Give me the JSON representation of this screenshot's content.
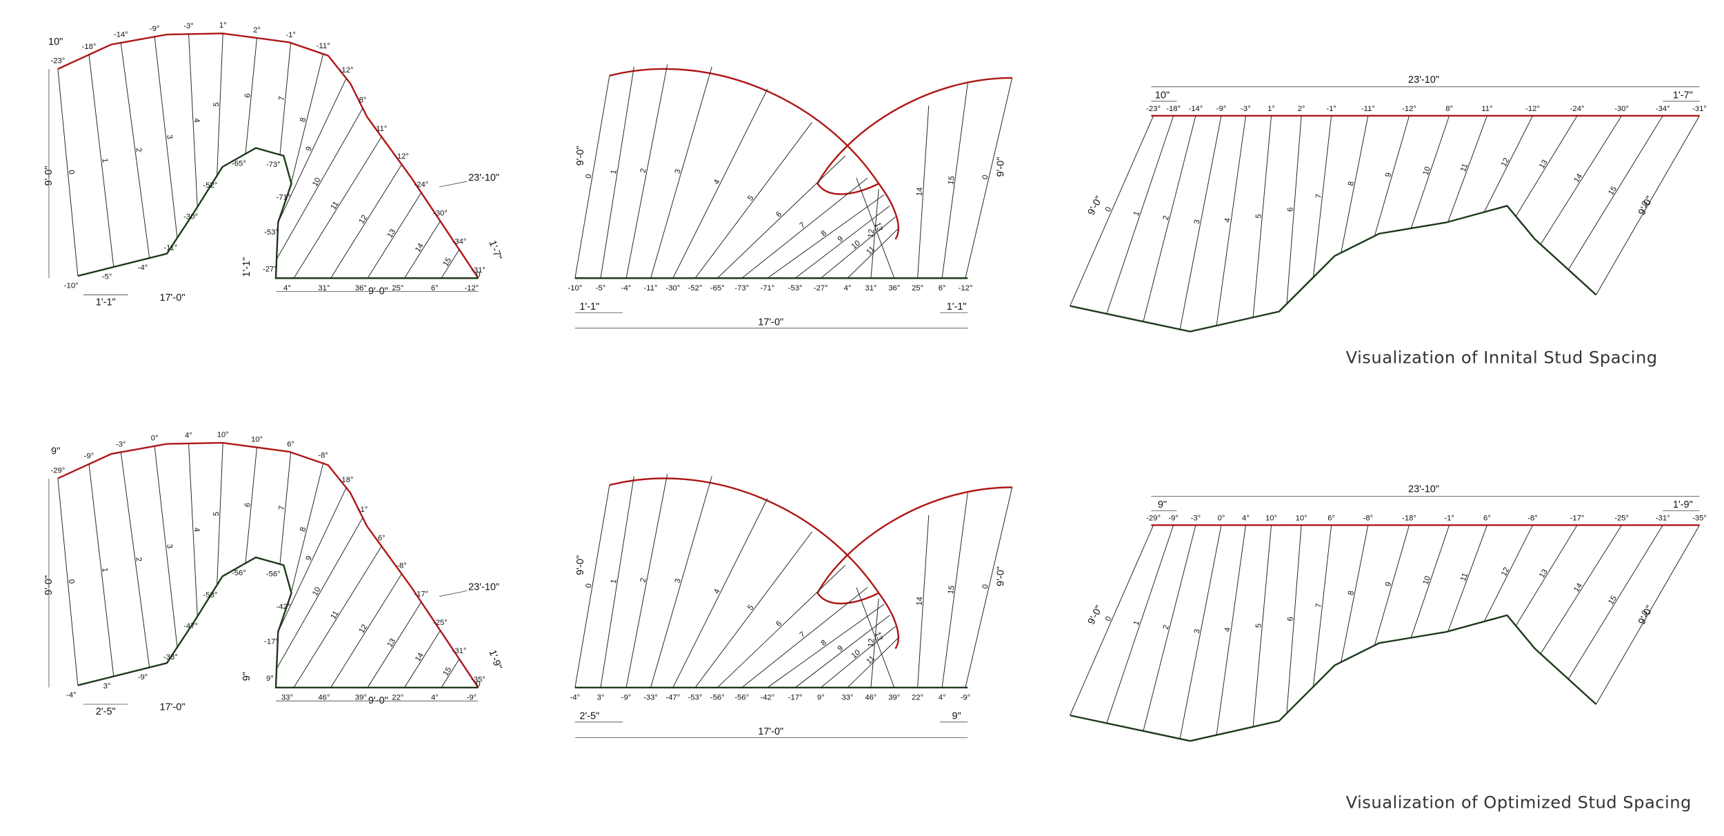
{
  "rows": [
    {
      "caption": "Visualization of Innital Stud Spacing",
      "top_angles": [
        "-23°",
        "-18°",
        "-14°",
        "-9°",
        "-3°",
        "1°",
        "2°",
        "-1°",
        "-11°",
        "-12°",
        "8°",
        "11°",
        "-12°",
        "-24°",
        "-30°",
        "-34°",
        "-31°"
      ],
      "bottom_angles": [
        "-10°",
        "-5°",
        "-4°",
        "-11°",
        "-30°",
        "-52°",
        "-65°",
        "-73°",
        "-71°",
        "-53°",
        "-27°",
        "4°",
        "31°",
        "36°",
        "25°",
        "6°",
        "-12°"
      ],
      "stud_labels": [
        "0",
        "1",
        "2",
        "3",
        "4",
        "5",
        "6",
        "7",
        "8",
        "9",
        "10",
        "11",
        "12",
        "13",
        "14",
        "15",
        "0"
      ],
      "plan_dims": [
        "10\"",
        "9'-0\"",
        "1'-1\"",
        "17'-0\"",
        "23'-10\"",
        "1'-7\"",
        "1'-1\"",
        "9'-0\""
      ],
      "elevation_dims": [
        "9'-0\"",
        "9'-0\"",
        "1'-1\"",
        "1'-1\"",
        "17'-0\""
      ],
      "unrolled_dims": [
        "23'-10\"",
        "10\"",
        "1'-7\"",
        "9'-0\"",
        "9'-0\""
      ]
    },
    {
      "caption": "Visualization of Optimized Stud Spacing",
      "top_angles": [
        "-29°",
        "-9°",
        "-3°",
        "0°",
        "4°",
        "10°",
        "10°",
        "6°",
        "-8°",
        "-18°",
        "-1°",
        "6°",
        "-8°",
        "-17°",
        "-25°",
        "-31°",
        "-35°"
      ],
      "bottom_angles": [
        "-4°",
        "3°",
        "-9°",
        "-33°",
        "-47°",
        "-53°",
        "-56°",
        "-56°",
        "-42°",
        "-17°",
        "9°",
        "33°",
        "46°",
        "39°",
        "22°",
        "4°",
        "-9°"
      ],
      "stud_labels": [
        "0",
        "1",
        "2",
        "3",
        "4",
        "5",
        "6",
        "7",
        "8",
        "9",
        "10",
        "11",
        "12",
        "13",
        "14",
        "15",
        "0"
      ],
      "plan_dims": [
        "9\"",
        "9'-0\"",
        "2'-5\"",
        "17'-0\"",
        "23'-10\"",
        "1'-9\"",
        "9\"",
        "9'-0\""
      ],
      "elevation_dims": [
        "9'-0\"",
        "9'-0\"",
        "2'-5\"",
        "9\"",
        "17'-0\""
      ],
      "unrolled_dims": [
        "23'-10\"",
        "9\"",
        "1'-9\"",
        "9'-0\"",
        "9'-0\""
      ]
    }
  ]
}
